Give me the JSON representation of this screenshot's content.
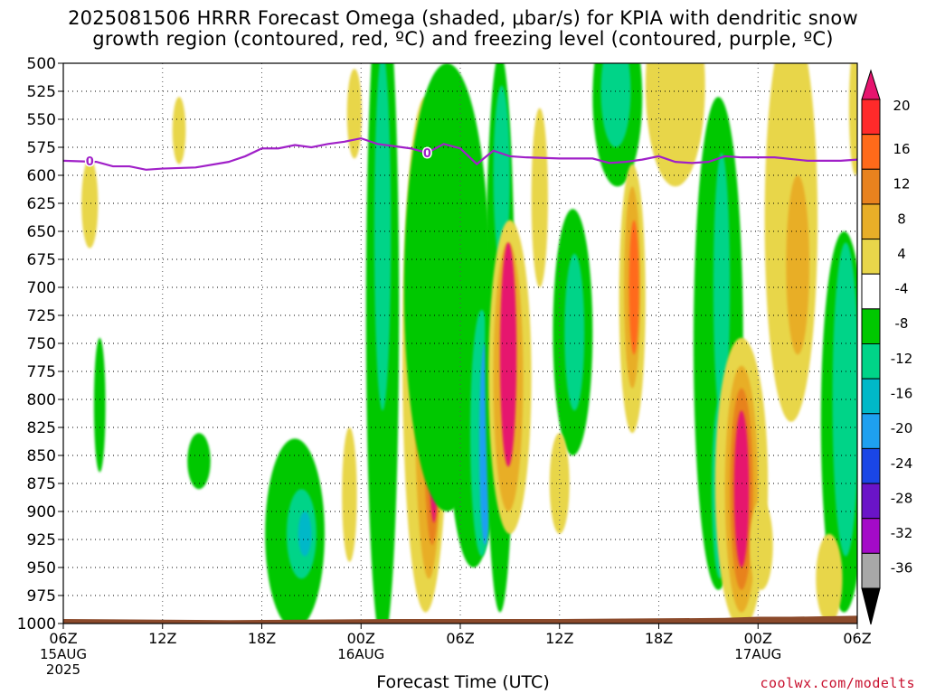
{
  "chart_data": {
    "type": "heatmap",
    "title_line1": "2025081506 HRRR Forecast Omega (shaded, μbar/s) for KPIA with dendritic snow",
    "title_line2": "growth region (contoured, red, ºC) and freezing level (contoured, purple, ºC)",
    "xlabel": "Forecast Time (UTC)",
    "credit": "coolwx.com/modelts",
    "y_ticks": [
      500,
      525,
      550,
      575,
      600,
      625,
      650,
      675,
      700,
      725,
      750,
      775,
      800,
      825,
      850,
      875,
      900,
      925,
      950,
      975,
      1000
    ],
    "ylim": [
      1000,
      500
    ],
    "x_ticks": [
      {
        "h": 0,
        "label": "06Z",
        "date": "15AUG",
        "year": "2025"
      },
      {
        "h": 6,
        "label": "12Z"
      },
      {
        "h": 12,
        "label": "18Z"
      },
      {
        "h": 18,
        "label": "00Z",
        "date": "16AUG"
      },
      {
        "h": 24,
        "label": "06Z"
      },
      {
        "h": 30,
        "label": "12Z"
      },
      {
        "h": 36,
        "label": "18Z"
      },
      {
        "h": 42,
        "label": "00Z",
        "date": "17AUG"
      },
      {
        "h": 48,
        "label": "06Z"
      }
    ],
    "xlim": [
      0,
      48
    ],
    "colorbar": {
      "labels": [
        "20",
        "16",
        "12",
        "8",
        "4",
        "-4",
        "-8",
        "-12",
        "-16",
        "-20",
        "-24",
        "-28",
        "-32",
        "-36"
      ],
      "colors": [
        "#ff2a2a",
        "#ff6a1a",
        "#e8821e",
        "#e8ae28",
        "#e8d64a",
        "#ffffff",
        "#00c800",
        "#00d488",
        "#00b8c8",
        "#1ea0f0",
        "#1a46e6",
        "#6a14c8",
        "#a40ac8",
        "#a8a8a8"
      ],
      "top_color": "#e6146e",
      "bottom_color": "#000000"
    },
    "freezing_level": {
      "label": "0",
      "color": "#a020c8",
      "points": [
        [
          0,
          587
        ],
        [
          2,
          588
        ],
        [
          3,
          592
        ],
        [
          4,
          592
        ],
        [
          5,
          595
        ],
        [
          6,
          594
        ],
        [
          8,
          593
        ],
        [
          10,
          588
        ],
        [
          11,
          583
        ],
        [
          12,
          576
        ],
        [
          13,
          576
        ],
        [
          14,
          573
        ],
        [
          15,
          575
        ],
        [
          16,
          572
        ],
        [
          17,
          570
        ],
        [
          18,
          567
        ],
        [
          19,
          572
        ],
        [
          20,
          574
        ],
        [
          21,
          576
        ],
        [
          22,
          580
        ],
        [
          23,
          572
        ],
        [
          24,
          576
        ],
        [
          25,
          590
        ],
        [
          25.5,
          584
        ],
        [
          26,
          578
        ],
        [
          27,
          583
        ],
        [
          28,
          584
        ],
        [
          30,
          585
        ],
        [
          32,
          585
        ],
        [
          33,
          589
        ],
        [
          34,
          588
        ],
        [
          35,
          586
        ],
        [
          36,
          583
        ],
        [
          37,
          588
        ],
        [
          38,
          589
        ],
        [
          39,
          588
        ],
        [
          40,
          583
        ],
        [
          41,
          584
        ],
        [
          43,
          584
        ],
        [
          45,
          587
        ],
        [
          47,
          587
        ],
        [
          48,
          586
        ]
      ]
    },
    "omega_features": [
      {
        "x": 2.2,
        "p": 805,
        "w": 0.35,
        "h": 60,
        "value": -8
      },
      {
        "x": 1.6,
        "p": 625,
        "w": 0.5,
        "h": 40,
        "value": 4
      },
      {
        "x": 7.0,
        "p": 560,
        "w": 0.4,
        "h": 30,
        "value": 4
      },
      {
        "x": 14.0,
        "p": 920,
        "w": 1.8,
        "h": 85,
        "value": -8
      },
      {
        "x": 14.4,
        "p": 920,
        "w": 0.9,
        "h": 40,
        "value": -12
      },
      {
        "x": 14.6,
        "p": 920,
        "w": 0.4,
        "h": 20,
        "value": -16
      },
      {
        "x": 8.2,
        "p": 855,
        "w": 0.7,
        "h": 25,
        "value": -8
      },
      {
        "x": 17.6,
        "p": 545,
        "w": 0.45,
        "h": 40,
        "value": 4
      },
      {
        "x": 17.3,
        "p": 885,
        "w": 0.45,
        "h": 60,
        "value": 4
      },
      {
        "x": 19.3,
        "p": 720,
        "w": 1.0,
        "h": 300,
        "value": -8
      },
      {
        "x": 19.3,
        "p": 650,
        "w": 0.5,
        "h": 160,
        "value": -12
      },
      {
        "x": 21.9,
        "p": 760,
        "w": 1.4,
        "h": 230,
        "value": 4
      },
      {
        "x": 22.1,
        "p": 760,
        "w": 0.9,
        "h": 200,
        "value": 8
      },
      {
        "x": 22.3,
        "p": 760,
        "w": 0.6,
        "h": 170,
        "value": 12
      },
      {
        "x": 22.4,
        "p": 760,
        "w": 0.4,
        "h": 150,
        "value": 20
      },
      {
        "x": 23.2,
        "p": 700,
        "w": 2.6,
        "h": 200,
        "value": -8
      },
      {
        "x": 24.8,
        "p": 820,
        "w": 1.5,
        "h": 130,
        "value": -8
      },
      {
        "x": 25.3,
        "p": 830,
        "w": 0.7,
        "h": 110,
        "value": -12
      },
      {
        "x": 25.5,
        "p": 840,
        "w": 0.35,
        "h": 90,
        "value": -20
      },
      {
        "x": 26.4,
        "p": 740,
        "w": 0.9,
        "h": 250,
        "value": -8
      },
      {
        "x": 26.5,
        "p": 600,
        "w": 0.5,
        "h": 80,
        "value": -12
      },
      {
        "x": 27.0,
        "p": 780,
        "w": 1.3,
        "h": 140,
        "value": 4
      },
      {
        "x": 26.9,
        "p": 780,
        "w": 0.9,
        "h": 120,
        "value": 8
      },
      {
        "x": 26.9,
        "p": 760,
        "w": 0.5,
        "h": 100,
        "value": 20
      },
      {
        "x": 28.8,
        "p": 620,
        "w": 0.5,
        "h": 80,
        "value": 4
      },
      {
        "x": 30.8,
        "p": 740,
        "w": 1.2,
        "h": 110,
        "value": -8
      },
      {
        "x": 30.9,
        "p": 740,
        "w": 0.6,
        "h": 70,
        "value": -12
      },
      {
        "x": 30.0,
        "p": 875,
        "w": 0.6,
        "h": 45,
        "value": 4
      },
      {
        "x": 33.5,
        "p": 530,
        "w": 1.5,
        "h": 80,
        "value": -8
      },
      {
        "x": 33.4,
        "p": 525,
        "w": 0.9,
        "h": 50,
        "value": -12
      },
      {
        "x": 34.4,
        "p": 710,
        "w": 0.8,
        "h": 120,
        "value": 4
      },
      {
        "x": 34.4,
        "p": 700,
        "w": 0.5,
        "h": 90,
        "value": 8
      },
      {
        "x": 34.5,
        "p": 700,
        "w": 0.3,
        "h": 60,
        "value": 16
      },
      {
        "x": 37.0,
        "p": 520,
        "w": 1.8,
        "h": 90,
        "value": 4
      },
      {
        "x": 39.6,
        "p": 750,
        "w": 1.5,
        "h": 220,
        "value": -8
      },
      {
        "x": 39.8,
        "p": 700,
        "w": 0.5,
        "h": 120,
        "value": -12
      },
      {
        "x": 39.7,
        "p": 880,
        "w": 0.5,
        "h": 80,
        "value": -12
      },
      {
        "x": 39.8,
        "p": 880,
        "w": 0.25,
        "h": 70,
        "value": -20
      },
      {
        "x": 41.0,
        "p": 875,
        "w": 1.6,
        "h": 130,
        "value": 4
      },
      {
        "x": 41.0,
        "p": 880,
        "w": 1.0,
        "h": 110,
        "value": 8
      },
      {
        "x": 41.0,
        "p": 880,
        "w": 0.7,
        "h": 90,
        "value": 12
      },
      {
        "x": 41.0,
        "p": 880,
        "w": 0.45,
        "h": 70,
        "value": 20
      },
      {
        "x": 42.2,
        "p": 930,
        "w": 0.7,
        "h": 40,
        "value": 4
      },
      {
        "x": 44.0,
        "p": 640,
        "w": 1.6,
        "h": 180,
        "value": 4
      },
      {
        "x": 44.4,
        "p": 680,
        "w": 0.7,
        "h": 80,
        "value": 8
      },
      {
        "x": 47.2,
        "p": 820,
        "w": 1.4,
        "h": 170,
        "value": -8
      },
      {
        "x": 47.3,
        "p": 800,
        "w": 0.8,
        "h": 140,
        "value": -12
      },
      {
        "x": 46.3,
        "p": 960,
        "w": 0.8,
        "h": 40,
        "value": 4
      },
      {
        "x": 47.9,
        "p": 540,
        "w": 0.4,
        "h": 60,
        "value": 4
      }
    ],
    "surface_pressure": [
      [
        0,
        996
      ],
      [
        10,
        997
      ],
      [
        20,
        996
      ],
      [
        30,
        996
      ],
      [
        40,
        995
      ],
      [
        42,
        994
      ],
      [
        44,
        994
      ],
      [
        48,
        993
      ]
    ],
    "grid": true
  }
}
